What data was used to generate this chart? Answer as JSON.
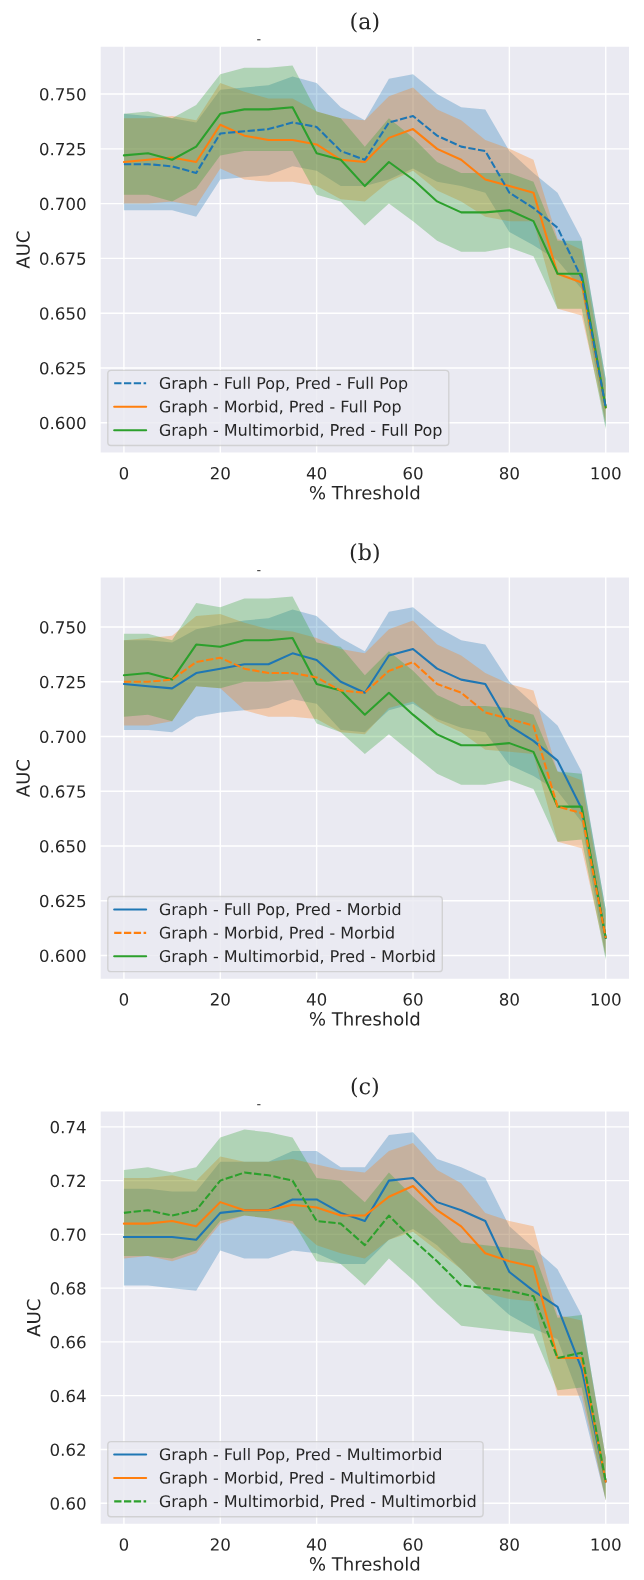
{
  "chart_data": [
    {
      "type": "line",
      "title": "(a)",
      "annotations": [
        "-"
      ],
      "xlabel": "% Threshold",
      "ylabel": "AUC",
      "x": [
        0,
        5,
        10,
        15,
        20,
        25,
        30,
        35,
        40,
        45,
        50,
        55,
        60,
        65,
        70,
        75,
        80,
        85,
        90,
        95,
        100
      ],
      "series": [
        {
          "name": "Graph - Full Pop, Pred - Full Pop",
          "color": "#1f77b4",
          "line_style": "dashed",
          "values": [
            0.718,
            0.718,
            0.717,
            0.714,
            0.732,
            0.733,
            0.734,
            0.737,
            0.735,
            0.724,
            0.72,
            0.737,
            0.74,
            0.731,
            0.726,
            0.724,
            0.705,
            0.698,
            0.689,
            0.666,
            0.607
          ],
          "lower": [
            0.697,
            0.697,
            0.697,
            0.694,
            0.711,
            0.712,
            0.713,
            0.717,
            0.715,
            0.708,
            0.708,
            0.711,
            0.716,
            0.71,
            0.708,
            0.705,
            0.687,
            0.681,
            0.674,
            0.661,
            0.598
          ],
          "upper": [
            0.741,
            0.74,
            0.739,
            0.737,
            0.752,
            0.753,
            0.754,
            0.758,
            0.755,
            0.744,
            0.738,
            0.757,
            0.759,
            0.75,
            0.744,
            0.743,
            0.724,
            0.714,
            0.705,
            0.684,
            0.62
          ]
        },
        {
          "name": "Graph - Morbid, Pred - Full Pop",
          "color": "#ff7f0e",
          "line_style": "solid",
          "values": [
            0.719,
            0.72,
            0.721,
            0.719,
            0.736,
            0.731,
            0.729,
            0.729,
            0.727,
            0.72,
            0.719,
            0.73,
            0.734,
            0.725,
            0.72,
            0.711,
            0.708,
            0.705,
            0.668,
            0.664,
            0.607
          ],
          "lower": [
            0.7,
            0.7,
            0.701,
            0.699,
            0.716,
            0.711,
            0.71,
            0.71,
            0.708,
            0.702,
            0.701,
            0.71,
            0.715,
            0.706,
            0.701,
            0.694,
            0.692,
            0.692,
            0.652,
            0.649,
            0.6
          ],
          "upper": [
            0.739,
            0.739,
            0.74,
            0.738,
            0.755,
            0.751,
            0.748,
            0.748,
            0.742,
            0.739,
            0.738,
            0.749,
            0.753,
            0.743,
            0.738,
            0.729,
            0.725,
            0.72,
            0.684,
            0.679,
            0.617
          ]
        },
        {
          "name": "Graph - Multimorbid, Pred - Full Pop",
          "color": "#2ca02c",
          "line_style": "solid",
          "values": [
            0.722,
            0.723,
            0.72,
            0.726,
            0.741,
            0.743,
            0.743,
            0.744,
            0.723,
            0.72,
            0.708,
            0.719,
            0.711,
            0.701,
            0.696,
            0.696,
            0.697,
            0.692,
            0.668,
            0.668,
            0.607
          ],
          "lower": [
            0.704,
            0.704,
            0.701,
            0.707,
            0.722,
            0.724,
            0.724,
            0.724,
            0.704,
            0.701,
            0.69,
            0.7,
            0.692,
            0.683,
            0.678,
            0.678,
            0.68,
            0.676,
            0.652,
            0.652,
            0.597
          ],
          "upper": [
            0.741,
            0.742,
            0.739,
            0.745,
            0.759,
            0.762,
            0.762,
            0.763,
            0.742,
            0.739,
            0.726,
            0.739,
            0.73,
            0.719,
            0.714,
            0.714,
            0.714,
            0.71,
            0.683,
            0.683,
            0.62
          ]
        }
      ],
      "xlim": [
        -5,
        105
      ],
      "ylim": [
        0.586,
        0.772
      ],
      "xticks": [
        0,
        20,
        40,
        60,
        80,
        100
      ],
      "yticks": [
        {
          "value": 0.6,
          "label": "0.600"
        },
        {
          "value": 0.625,
          "label": "0.625"
        },
        {
          "value": 0.65,
          "label": "0.650"
        },
        {
          "value": 0.675,
          "label": "0.675"
        },
        {
          "value": 0.7,
          "label": "0.700"
        },
        {
          "value": 0.725,
          "label": "0.725"
        },
        {
          "value": 0.75,
          "label": "0.750"
        }
      ],
      "grid": true,
      "legend": "bottom left"
    },
    {
      "type": "line",
      "title": "(b)",
      "annotations": [
        "-"
      ],
      "xlabel": "% Threshold",
      "ylabel": "AUC",
      "x": [
        0,
        5,
        10,
        15,
        20,
        25,
        30,
        35,
        40,
        45,
        50,
        55,
        60,
        65,
        70,
        75,
        80,
        85,
        90,
        95,
        100
      ],
      "series": [
        {
          "name": "Graph - Full Pop, Pred - Morbid",
          "color": "#1f77b4",
          "line_style": "solid",
          "values": [
            0.724,
            0.723,
            0.722,
            0.729,
            0.731,
            0.733,
            0.733,
            0.738,
            0.735,
            0.725,
            0.72,
            0.737,
            0.74,
            0.731,
            0.726,
            0.724,
            0.705,
            0.698,
            0.689,
            0.667,
            0.608
          ],
          "lower": [
            0.703,
            0.703,
            0.702,
            0.709,
            0.711,
            0.712,
            0.713,
            0.717,
            0.715,
            0.703,
            0.702,
            0.712,
            0.715,
            0.708,
            0.704,
            0.702,
            0.687,
            0.682,
            0.675,
            0.661,
            0.599
          ],
          "upper": [
            0.744,
            0.744,
            0.743,
            0.749,
            0.751,
            0.753,
            0.754,
            0.758,
            0.755,
            0.745,
            0.739,
            0.757,
            0.759,
            0.75,
            0.744,
            0.742,
            0.725,
            0.715,
            0.705,
            0.684,
            0.621
          ]
        },
        {
          "name": "Graph - Morbid, Pred - Morbid",
          "color": "#ff7f0e",
          "line_style": "dashed",
          "values": [
            0.725,
            0.725,
            0.726,
            0.734,
            0.736,
            0.731,
            0.729,
            0.729,
            0.727,
            0.721,
            0.72,
            0.73,
            0.734,
            0.724,
            0.72,
            0.711,
            0.708,
            0.705,
            0.668,
            0.665,
            0.608
          ],
          "lower": [
            0.705,
            0.705,
            0.707,
            0.723,
            0.722,
            0.712,
            0.709,
            0.709,
            0.708,
            0.702,
            0.701,
            0.713,
            0.716,
            0.707,
            0.702,
            0.694,
            0.693,
            0.692,
            0.652,
            0.649,
            0.6
          ],
          "upper": [
            0.744,
            0.745,
            0.746,
            0.755,
            0.756,
            0.752,
            0.749,
            0.748,
            0.745,
            0.74,
            0.738,
            0.749,
            0.753,
            0.742,
            0.737,
            0.729,
            0.724,
            0.721,
            0.684,
            0.68,
            0.618
          ]
        },
        {
          "name": "Graph - Multimorbid, Pred - Morbid",
          "color": "#2ca02c",
          "line_style": "solid",
          "values": [
            0.728,
            0.729,
            0.726,
            0.742,
            0.741,
            0.744,
            0.744,
            0.745,
            0.724,
            0.721,
            0.71,
            0.72,
            0.71,
            0.701,
            0.696,
            0.696,
            0.697,
            0.693,
            0.668,
            0.668,
            0.608
          ],
          "lower": [
            0.709,
            0.71,
            0.707,
            0.723,
            0.722,
            0.725,
            0.725,
            0.726,
            0.706,
            0.702,
            0.692,
            0.701,
            0.692,
            0.683,
            0.678,
            0.678,
            0.68,
            0.676,
            0.652,
            0.653,
            0.598
          ],
          "upper": [
            0.747,
            0.747,
            0.744,
            0.761,
            0.759,
            0.763,
            0.763,
            0.764,
            0.743,
            0.741,
            0.728,
            0.739,
            0.73,
            0.719,
            0.714,
            0.714,
            0.713,
            0.71,
            0.684,
            0.683,
            0.621
          ]
        }
      ],
      "xlim": [
        -5,
        105
      ],
      "ylim": [
        0.589,
        0.773
      ],
      "xticks": [
        0,
        20,
        40,
        60,
        80,
        100
      ],
      "yticks": [
        {
          "value": 0.6,
          "label": "0.600"
        },
        {
          "value": 0.625,
          "label": "0.625"
        },
        {
          "value": 0.65,
          "label": "0.650"
        },
        {
          "value": 0.675,
          "label": "0.675"
        },
        {
          "value": 0.7,
          "label": "0.700"
        },
        {
          "value": 0.725,
          "label": "0.725"
        },
        {
          "value": 0.75,
          "label": "0.750"
        }
      ],
      "grid": true,
      "legend": "bottom left"
    },
    {
      "type": "line",
      "title": "(c)",
      "annotations": [
        "-"
      ],
      "xlabel": "% Threshold",
      "ylabel": "AUC",
      "x": [
        0,
        5,
        10,
        15,
        20,
        25,
        30,
        35,
        40,
        45,
        50,
        55,
        60,
        65,
        70,
        75,
        80,
        85,
        90,
        95,
        100
      ],
      "series": [
        {
          "name": "Graph - Full Pop, Pred - Multimorbid",
          "color": "#1f77b4",
          "line_style": "solid",
          "values": [
            0.699,
            0.699,
            0.699,
            0.698,
            0.708,
            0.709,
            0.709,
            0.713,
            0.713,
            0.708,
            0.705,
            0.72,
            0.721,
            0.712,
            0.709,
            0.705,
            0.686,
            0.679,
            0.673,
            0.65,
            0.608
          ],
          "lower": [
            0.681,
            0.681,
            0.68,
            0.679,
            0.694,
            0.691,
            0.691,
            0.694,
            0.693,
            0.689,
            0.689,
            0.698,
            0.702,
            0.696,
            0.687,
            0.678,
            0.67,
            0.665,
            0.661,
            0.637,
            0.601
          ],
          "upper": [
            0.717,
            0.717,
            0.716,
            0.716,
            0.727,
            0.727,
            0.727,
            0.731,
            0.731,
            0.725,
            0.725,
            0.737,
            0.738,
            0.728,
            0.725,
            0.721,
            0.703,
            0.695,
            0.687,
            0.67,
            0.617
          ]
        },
        {
          "name": "Graph - Morbid, Pred - Multimorbid",
          "color": "#ff7f0e",
          "line_style": "solid",
          "values": [
            0.704,
            0.704,
            0.705,
            0.703,
            0.712,
            0.709,
            0.709,
            0.711,
            0.71,
            0.707,
            0.707,
            0.714,
            0.718,
            0.709,
            0.703,
            0.693,
            0.69,
            0.688,
            0.654,
            0.654,
            0.608
          ],
          "lower": [
            0.691,
            0.692,
            0.69,
            0.693,
            0.704,
            0.707,
            0.706,
            0.704,
            0.696,
            0.693,
            0.691,
            0.698,
            0.701,
            0.694,
            0.687,
            0.678,
            0.676,
            0.675,
            0.64,
            0.64,
            0.601
          ],
          "upper": [
            0.721,
            0.721,
            0.722,
            0.72,
            0.729,
            0.727,
            0.727,
            0.728,
            0.726,
            0.724,
            0.723,
            0.731,
            0.734,
            0.724,
            0.719,
            0.708,
            0.705,
            0.703,
            0.67,
            0.668,
            0.617
          ]
        },
        {
          "name": "Graph - Multimorbid, Pred - Multimorbid",
          "color": "#2ca02c",
          "line_style": "dashed",
          "values": [
            0.708,
            0.709,
            0.707,
            0.709,
            0.72,
            0.723,
            0.722,
            0.72,
            0.705,
            0.704,
            0.696,
            0.707,
            0.698,
            0.69,
            0.681,
            0.68,
            0.679,
            0.677,
            0.654,
            0.656,
            0.608
          ],
          "lower": [
            0.692,
            0.692,
            0.691,
            0.694,
            0.705,
            0.707,
            0.706,
            0.705,
            0.69,
            0.689,
            0.681,
            0.691,
            0.683,
            0.674,
            0.666,
            0.665,
            0.664,
            0.663,
            0.642,
            0.643,
            0.601
          ],
          "upper": [
            0.724,
            0.725,
            0.723,
            0.725,
            0.736,
            0.739,
            0.738,
            0.736,
            0.721,
            0.72,
            0.712,
            0.723,
            0.714,
            0.706,
            0.697,
            0.696,
            0.695,
            0.694,
            0.669,
            0.67,
            0.617
          ]
        }
      ],
      "xlim": [
        -5,
        105
      ],
      "ylim": [
        0.592,
        0.746
      ],
      "xticks": [
        0,
        20,
        40,
        60,
        80,
        100
      ],
      "yticks": [
        {
          "value": 0.6,
          "label": "0.60"
        },
        {
          "value": 0.62,
          "label": "0.62"
        },
        {
          "value": 0.64,
          "label": "0.64"
        },
        {
          "value": 0.66,
          "label": "0.66"
        },
        {
          "value": 0.68,
          "label": "0.68"
        },
        {
          "value": 0.7,
          "label": "0.70"
        },
        {
          "value": 0.72,
          "label": "0.72"
        },
        {
          "value": 0.74,
          "label": "0.74"
        }
      ],
      "grid": true,
      "legend": "bottom left"
    }
  ]
}
